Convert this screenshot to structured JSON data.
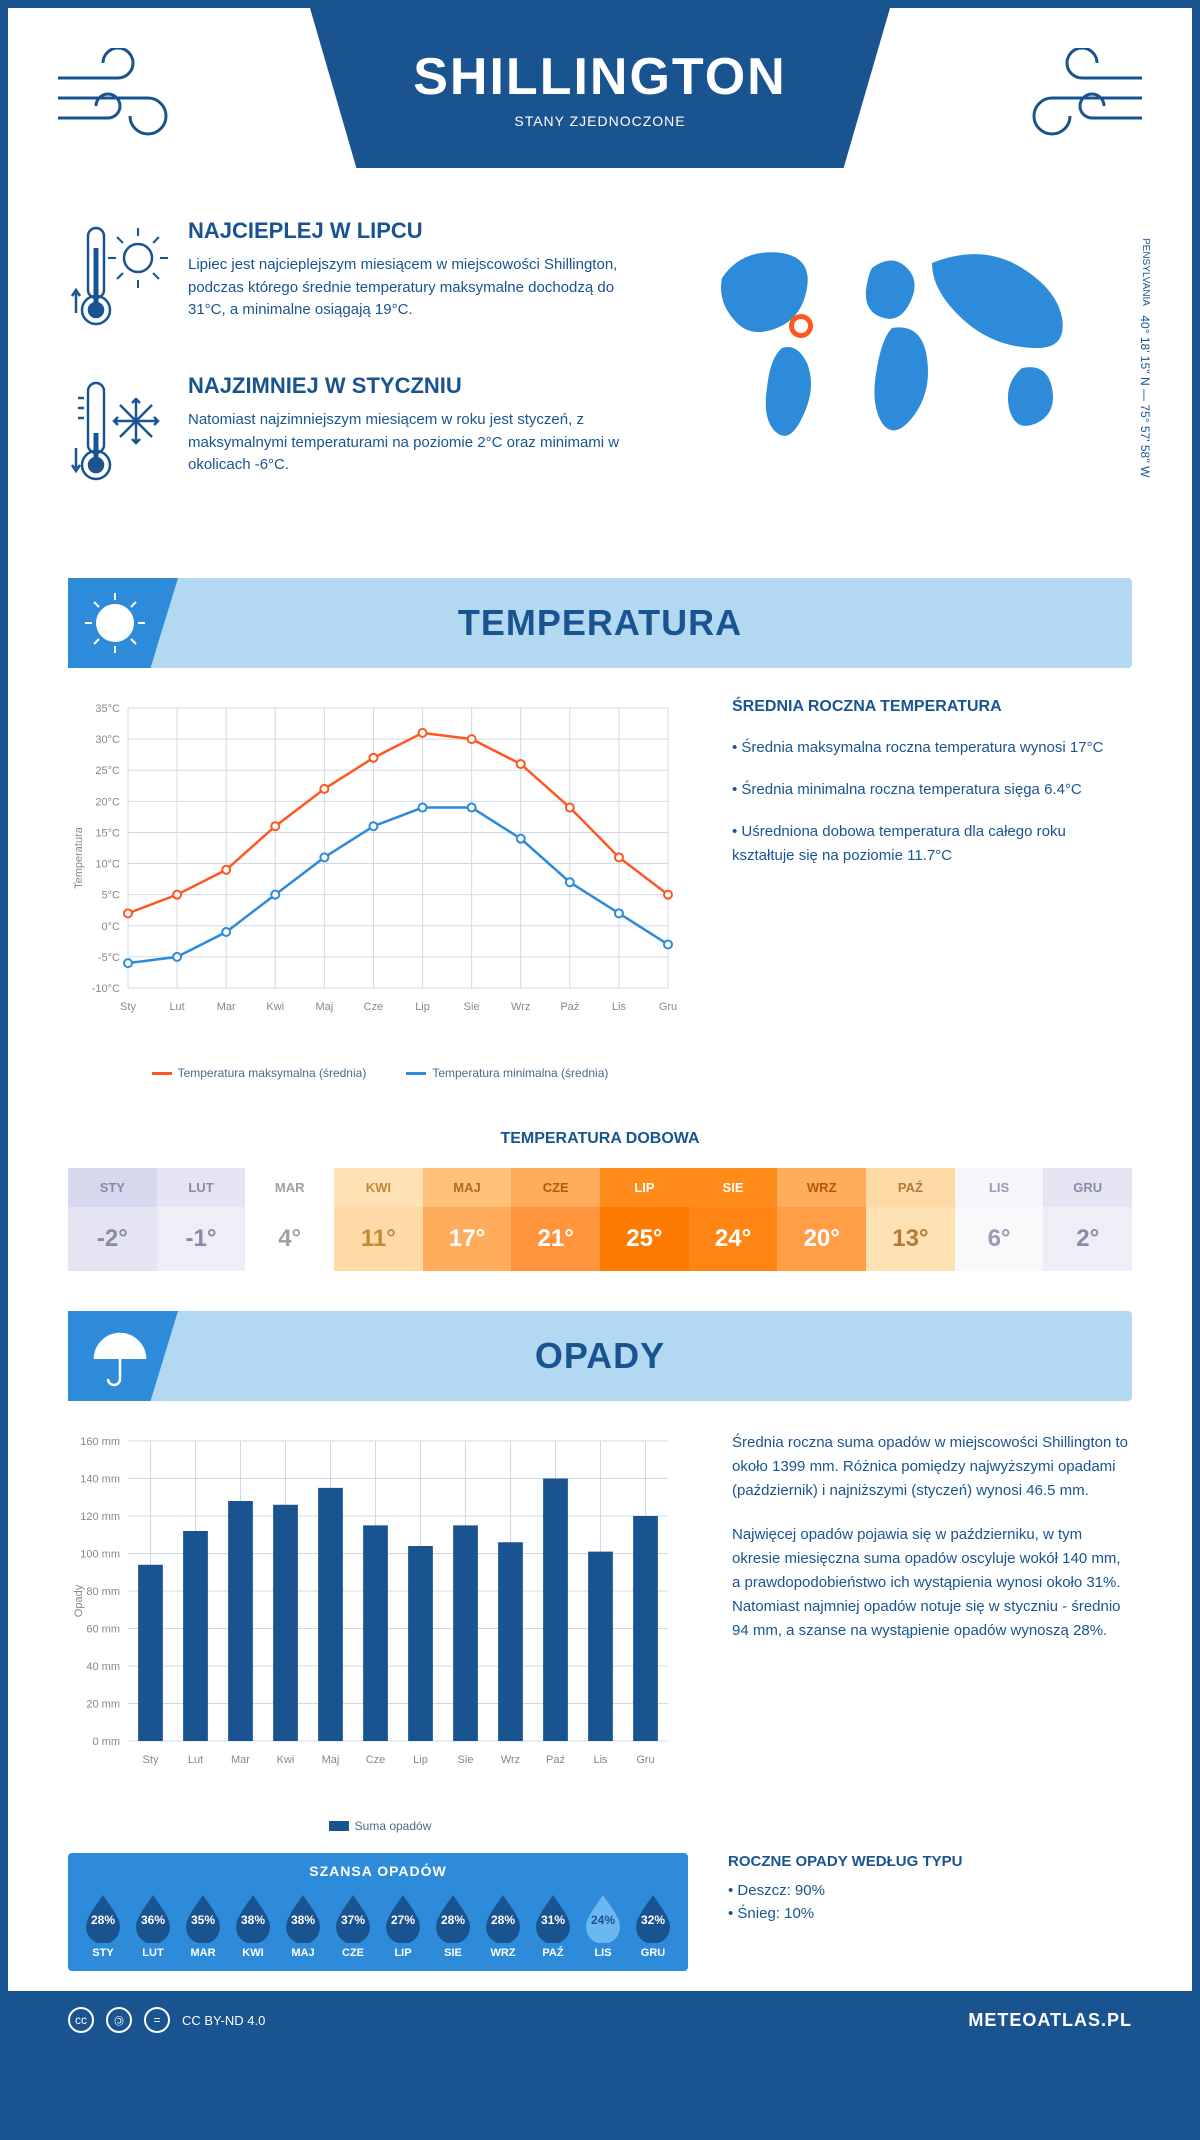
{
  "header": {
    "city": "SHILLINGTON",
    "country": "STANY ZJEDNOCZONE"
  },
  "coords": {
    "state": "PENSYLVANIA",
    "text": "40° 18' 15'' N — 75° 57' 58'' W"
  },
  "marker": {
    "left_pct": 23,
    "top_pct": 40
  },
  "hot": {
    "title": "NAJCIEPLEJ W LIPCU",
    "text": "Lipiec jest najcieplejszym miesiącem w miejscowości Shillington, podczas którego średnie temperatury maksymalne dochodzą do 31°C, a minimalne osiągają 19°C."
  },
  "cold": {
    "title": "NAJZIMNIEJ W STYCZNIU",
    "text": "Natomiast najzimniejszym miesiącem w roku jest styczeń, z maksymalnymi temperaturami na poziomie 2°C oraz minimami w okolicach -6°C."
  },
  "temp_section": {
    "title": "TEMPERATURA"
  },
  "temp_chart": {
    "months": [
      "Sty",
      "Lut",
      "Mar",
      "Kwi",
      "Maj",
      "Cze",
      "Lip",
      "Sie",
      "Wrz",
      "Paź",
      "Lis",
      "Gru"
    ],
    "ylabel": "Temperatura",
    "ymin": -10,
    "ymax": 35,
    "ystep": 5,
    "ysuffix": "°C",
    "max_series": [
      2,
      5,
      9,
      16,
      22,
      27,
      31,
      30,
      26,
      19,
      11,
      5
    ],
    "min_series": [
      -6,
      -5,
      -1,
      5,
      11,
      16,
      19,
      19,
      14,
      7,
      2,
      -3
    ],
    "max_color": "#ff5722",
    "min_color": "#2e8bd9",
    "grid_color": "#d0d8e8",
    "legend_max": "Temperatura maksymalna (średnia)",
    "legend_min": "Temperatura minimalna (średnia)"
  },
  "temp_side": {
    "title": "ŚREDNIA ROCZNA TEMPERATURA",
    "bullets": [
      "• Średnia maksymalna roczna temperatura wynosi 17°C",
      "• Średnia minimalna roczna temperatura sięga 6.4°C",
      "• Uśredniona dobowa temperatura dla całego roku kształtuje się na poziomie 11.7°C"
    ]
  },
  "daily": {
    "title": "TEMPERATURA DOBOWA",
    "months": [
      "STY",
      "LUT",
      "MAR",
      "KWI",
      "MAJ",
      "CZE",
      "LIP",
      "SIE",
      "WRZ",
      "PAŹ",
      "LIS",
      "GRU"
    ],
    "values": [
      "-2°",
      "-1°",
      "4°",
      "11°",
      "17°",
      "21°",
      "25°",
      "24°",
      "20°",
      "13°",
      "6°",
      "2°"
    ],
    "head_colors": [
      "#d8d8ee",
      "#e4e4f2",
      "#ffffff",
      "#ffe1b3",
      "#ffc278",
      "#ffad5c",
      "#ff8c1a",
      "#ff8c1a",
      "#ffad5c",
      "#ffd9a6",
      "#f5f5fa",
      "#e4e4f2"
    ],
    "val_colors": [
      "#e4e4f2",
      "#eeeef6",
      "#ffffff",
      "#ffd9a6",
      "#ffad5c",
      "#ff943d",
      "#ff7a00",
      "#ff8514",
      "#ff9e47",
      "#ffe1b3",
      "#f9f9fc",
      "#eeeef6"
    ],
    "head_text": [
      "#8a8aa6",
      "#8a8aa6",
      "#a0a0a0",
      "#c08a3a",
      "#b36a1a",
      "#b35a0a",
      "#ffffff",
      "#ffffff",
      "#b35a0a",
      "#b37a3a",
      "#9a9ab0",
      "#8a8aa6"
    ],
    "val_text": [
      "#8a8aa6",
      "#8a8aa6",
      "#a0a0a0",
      "#c08a3a",
      "#ffffff",
      "#ffffff",
      "#ffffff",
      "#ffffff",
      "#ffffff",
      "#b37a3a",
      "#9a9ab0",
      "#8a8aa6"
    ]
  },
  "precip_section": {
    "title": "OPADY"
  },
  "precip_chart": {
    "months": [
      "Sty",
      "Lut",
      "Mar",
      "Kwi",
      "Maj",
      "Cze",
      "Lip",
      "Sie",
      "Wrz",
      "Paź",
      "Lis",
      "Gru"
    ],
    "ylabel": "Opady",
    "ymin": 0,
    "ymax": 160,
    "ystep": 20,
    "ysuffix": " mm",
    "values": [
      94,
      112,
      128,
      126,
      135,
      115,
      104,
      115,
      106,
      140,
      101,
      120
    ],
    "bar_color": "#1a5490",
    "grid_color": "#d0d8e8",
    "legend": "Suma opadów"
  },
  "precip_text": {
    "p1": "Średnia roczna suma opadów w miejscowości Shillington to około 1399 mm. Różnica pomiędzy najwyższymi opadami (październik) i najniższymi (styczeń) wynosi 46.5 mm.",
    "p2": "Najwięcej opadów pojawia się w październiku, w tym okresie miesięczna suma opadów oscyluje wokół 140 mm, a prawdopodobieństwo ich wystąpienia wynosi około 31%. Natomiast najmniej opadów notuje się w styczniu - średnio 94 mm, a szanse na wystąpienie opadów wynoszą 28%."
  },
  "chance": {
    "title": "SZANSA OPADÓW",
    "months": [
      "STY",
      "LUT",
      "MAR",
      "KWI",
      "MAJ",
      "CZE",
      "LIP",
      "SIE",
      "WRZ",
      "PAŹ",
      "LIS",
      "GRU"
    ],
    "pct": [
      "28%",
      "36%",
      "35%",
      "38%",
      "38%",
      "37%",
      "27%",
      "28%",
      "28%",
      "31%",
      "24%",
      "32%"
    ],
    "drop_fill": "#1a5490",
    "drop_fill_min": "#6bb8f0",
    "min_index": 10
  },
  "type": {
    "title": "ROCZNE OPADY WEDŁUG TYPU",
    "lines": [
      "• Deszcz: 90%",
      "• Śnieg: 10%"
    ]
  },
  "footer": {
    "license": "CC BY-ND 4.0",
    "site": "METEOATLAS.PL"
  }
}
